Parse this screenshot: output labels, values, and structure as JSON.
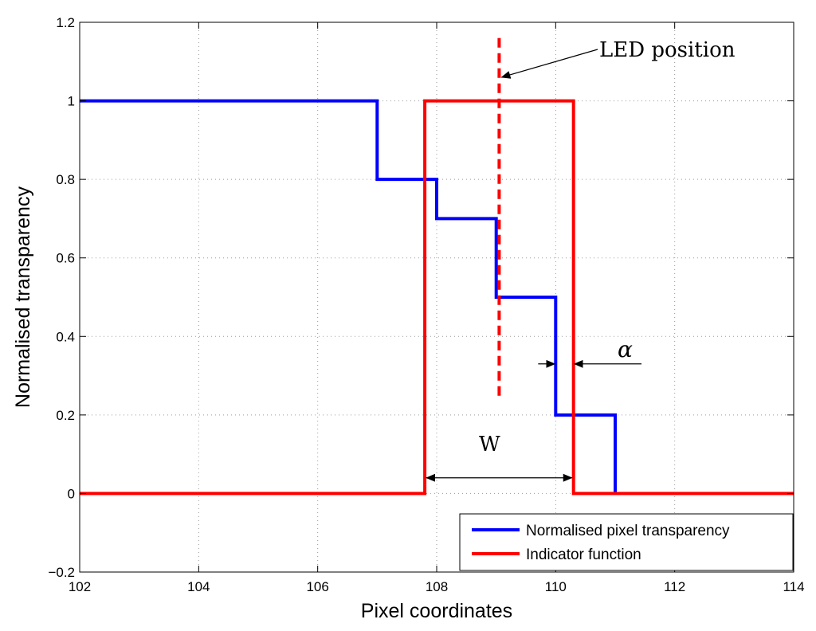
{
  "chart_data": {
    "type": "line",
    "title": "",
    "xlabel": "Pixel coordinates",
    "ylabel": "Normalised transparency",
    "xlim": [
      102,
      114
    ],
    "ylim": [
      -0.2,
      1.2
    ],
    "xticks": [
      102,
      104,
      106,
      108,
      110,
      112,
      114
    ],
    "yticks": [
      -0.2,
      0,
      0.2,
      0.4,
      0.6,
      0.8,
      1,
      1.2
    ],
    "xtick_labels": [
      "102",
      "104",
      "106",
      "108",
      "110",
      "112",
      "114"
    ],
    "ytick_labels": [
      "−0.2",
      "0",
      "0.2",
      "0.4",
      "0.6",
      "0.8",
      "1",
      "1.2"
    ],
    "grid": true,
    "legend_position": "bottom-right",
    "series": [
      {
        "name": "Normalised pixel transparency",
        "color": "#0000ff",
        "step": true,
        "x": [
          102,
          107,
          107,
          108,
          108,
          109,
          109,
          110,
          110,
          111,
          111
        ],
        "y": [
          1,
          1,
          0.8,
          0.8,
          0.7,
          0.7,
          0.5,
          0.5,
          0.2,
          0.2,
          0
        ]
      },
      {
        "name": "Indicator function",
        "color": "#ff0000",
        "step": true,
        "x": [
          102,
          107.8,
          107.8,
          110.3,
          110.3,
          114
        ],
        "y": [
          0,
          0,
          1,
          1,
          0,
          0
        ]
      }
    ],
    "led_line": {
      "x": 109.05,
      "y_range": [
        0.24,
        1.16
      ],
      "color": "#ff0000",
      "style": "dashed"
    },
    "annotations": {
      "led_label": "LED position",
      "width_label": "W",
      "alpha_label": "α",
      "width_arrow": {
        "x1": 107.8,
        "x2": 110.3,
        "y": 0.04
      },
      "alpha_arrow": {
        "x_left": 110.0,
        "x_right": 110.3,
        "y": 0.33
      },
      "led_arrow": {
        "x_tip": 109.05,
        "y_tip": 1.06
      }
    }
  }
}
